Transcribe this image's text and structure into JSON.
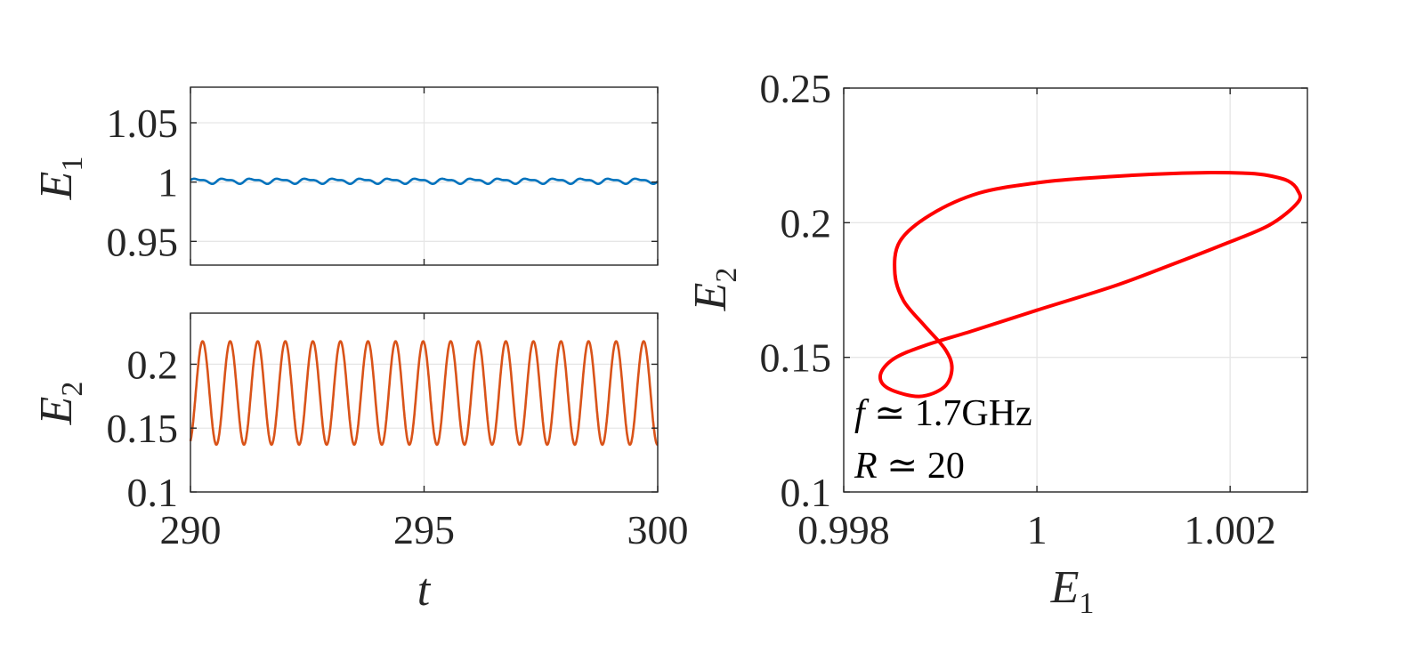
{
  "chart_data": [
    {
      "id": "top-left",
      "type": "line",
      "x_ticks": [
        "290",
        "295",
        "300"
      ],
      "y_ticks": [
        "0.95",
        "1",
        "1.05"
      ],
      "x_tick_values": [
        290,
        295,
        300
      ],
      "y_tick_values": [
        0.95,
        1,
        1.05
      ],
      "xlim": [
        290,
        300
      ],
      "ylim": [
        0.93,
        1.08
      ],
      "ylabel": "E",
      "ylabel_sub": "1",
      "grid": true,
      "series": [
        {
          "color": "#0072bd",
          "t_start": 290,
          "t_end": 300,
          "period": 0.59,
          "min": 0.9985,
          "max": 1.0035
        }
      ]
    },
    {
      "id": "bottom-left",
      "type": "line",
      "x_ticks": [
        "290",
        "295",
        "300"
      ],
      "y_ticks": [
        "0.1",
        "0.15",
        "0.2"
      ],
      "x_tick_values": [
        290,
        295,
        300
      ],
      "y_tick_values": [
        0.1,
        0.15,
        0.2
      ],
      "xlim": [
        290,
        300
      ],
      "ylim": [
        0.1,
        0.24
      ],
      "xlabel": "t",
      "ylabel": "E",
      "ylabel_sub": "2",
      "grid": true,
      "series": [
        {
          "color": "#d95319",
          "t_start": 290,
          "t_end": 300,
          "period": 0.59,
          "min": 0.137,
          "max": 0.218
        }
      ]
    },
    {
      "id": "right",
      "type": "line",
      "x_ticks": [
        "0.998",
        "1",
        "1.002"
      ],
      "y_ticks": [
        "0.1",
        "0.15",
        "0.2",
        "0.25"
      ],
      "x_tick_values": [
        0.998,
        1,
        1.002
      ],
      "y_tick_values": [
        0.1,
        0.15,
        0.2,
        0.25
      ],
      "xlim": [
        0.998,
        1.0028
      ],
      "ylim": [
        0.1,
        0.25
      ],
      "xlabel": "E",
      "xlabel_sub": "1",
      "ylabel": "E",
      "ylabel_sub": "2",
      "grid": true,
      "series": [
        {
          "color": "#ff0000",
          "x": [
            1.0027,
            1.0026,
            1.0024,
            1.0022,
            1.0018,
            1.0012,
            1.0005,
            1.0,
            0.9994,
            0.9989,
            0.99858,
            0.99853,
            0.99862,
            0.99883,
            0.99905,
            0.99912,
            0.99904,
            0.99878,
            0.99846,
            0.99838,
            0.99852,
            0.99885,
            0.99935,
            1.0,
            1.0008,
            1.0014,
            1.0019,
            1.0024,
            1.0027
          ],
          "y": [
            0.212,
            0.2155,
            0.2175,
            0.2183,
            0.2186,
            0.218,
            0.2165,
            0.2148,
            0.211,
            0.203,
            0.193,
            0.181,
            0.171,
            0.162,
            0.153,
            0.146,
            0.139,
            0.1355,
            0.1385,
            0.1435,
            0.1495,
            0.1545,
            0.16,
            0.1675,
            0.1765,
            0.1845,
            0.1915,
            0.199,
            0.2075
          ]
        }
      ]
    }
  ],
  "annotations": {
    "line1_italic": "f",
    "line1_rest": " ≃ 1.7GHz",
    "line2_italic": "R",
    "line2_rest": " ≃ 20"
  }
}
